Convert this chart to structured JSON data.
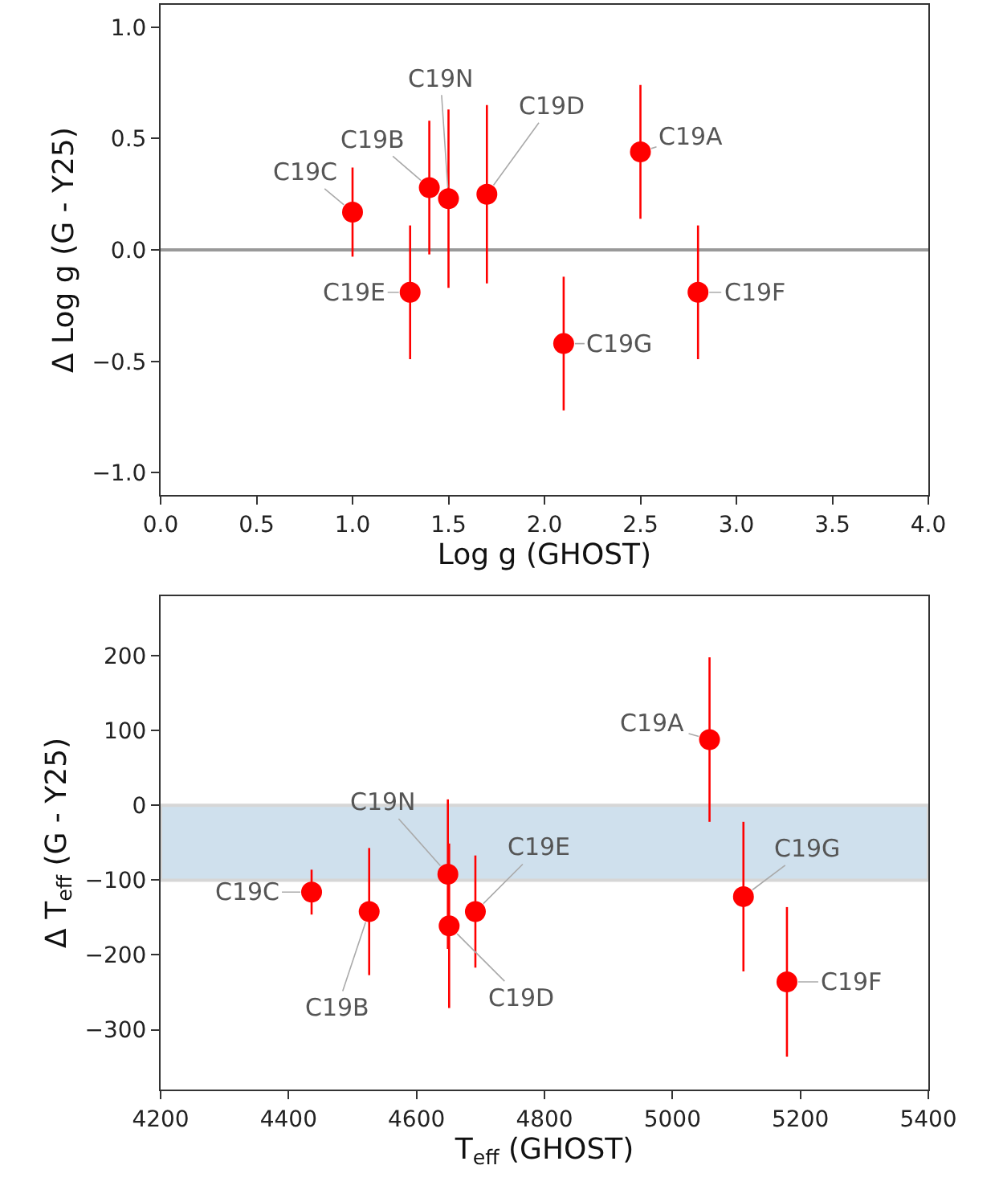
{
  "chart_data": [
    {
      "type": "scatter",
      "xlabel": "Log g (GHOST)",
      "ylabel": "Δ Log g (G - Y25)",
      "marker": "circle",
      "grid": false,
      "xlim": [
        0,
        4
      ],
      "xticks": [
        {
          "value": 0,
          "label": "0.0"
        },
        {
          "value": 0.5,
          "label": "0.5"
        },
        {
          "value": 1,
          "label": "1.0"
        },
        {
          "value": 1.5,
          "label": "1.5"
        },
        {
          "value": 2,
          "label": "2.0"
        },
        {
          "value": 2.5,
          "label": "2.5"
        },
        {
          "value": 3,
          "label": "3.0"
        },
        {
          "value": 3.5,
          "label": "3.5"
        },
        {
          "value": 4,
          "label": "4.0"
        }
      ],
      "ylim": [
        -1.1,
        1.1
      ],
      "yticks": [
        {
          "value": -1,
          "label": "−1.0"
        },
        {
          "value": -0.5,
          "label": "−0.5"
        },
        {
          "value": 0,
          "label": "0.0"
        },
        {
          "value": 0.5,
          "label": "0.5"
        },
        {
          "value": 1,
          "label": "1.0"
        }
      ],
      "series": [
        {
          "color": "#ff0000",
          "x": [
            2.5,
            1.4,
            1.0,
            1.7,
            1.3,
            2.8,
            2.1,
            1.5
          ],
          "values": [
            0.44,
            0.28,
            0.17,
            0.25,
            -0.19,
            -0.19,
            -0.42,
            0.23
          ],
          "errors": [
            0.3,
            0.3,
            0.2,
            0.4,
            0.3,
            0.3,
            0.3,
            0.4
          ]
        }
      ],
      "ref_lines": [
        {
          "axis": "y",
          "value": 0,
          "color": "#999999"
        }
      ],
      "annotations": [
        {
          "text": "C19A",
          "x": 2.5,
          "y": 0.44
        },
        {
          "text": "C19B",
          "x": 1.4,
          "y": 0.28
        },
        {
          "text": "C19C",
          "x": 1.0,
          "y": 0.17
        },
        {
          "text": "C19D",
          "x": 1.7,
          "y": 0.25
        },
        {
          "text": "C19E",
          "x": 1.3,
          "y": -0.19
        },
        {
          "text": "C19F",
          "x": 2.8,
          "y": -0.19
        },
        {
          "text": "C19G",
          "x": 2.1,
          "y": -0.42
        },
        {
          "text": "C19N",
          "x": 1.5,
          "y": 0.23
        }
      ]
    },
    {
      "type": "scatter",
      "xlabel": "T$_{eff}$ (GHOST)",
      "ylabel": "Δ T$_{eff}$ (G - Y25)",
      "marker": "circle",
      "grid": false,
      "xlim": [
        4200,
        5400
      ],
      "xticks": [
        4200,
        4400,
        4600,
        4800,
        5000,
        5200,
        5400
      ],
      "ylim": [
        -380,
        280
      ],
      "yticks": [
        {
          "value": -300,
          "label": "−300"
        },
        {
          "value": -200,
          "label": "−200"
        },
        {
          "value": -100,
          "label": "−100"
        },
        0,
        100,
        200
      ],
      "series": [
        {
          "color": "#ff0000",
          "x": [
            5058,
            4526,
            4436,
            4651,
            4692,
            5179,
            5111,
            4649
          ],
          "values": [
            88,
            -142,
            -116,
            -161,
            -142,
            -236,
            -122,
            -92
          ],
          "errors": [
            110,
            85,
            30,
            110,
            75,
            100,
            100,
            100
          ]
        }
      ],
      "bands": [
        {
          "axis": "y",
          "from": -100,
          "to": 0,
          "color": "#cfe0ed"
        }
      ],
      "annotations": [
        {
          "text": "C19A",
          "x": 5058,
          "y": 88
        },
        {
          "text": "C19B",
          "x": 4526,
          "y": -142
        },
        {
          "text": "C19C",
          "x": 4436,
          "y": -116
        },
        {
          "text": "C19D",
          "x": 4651,
          "y": -161
        },
        {
          "text": "C19E",
          "x": 4692,
          "y": -142
        },
        {
          "text": "C19F",
          "x": 5179,
          "y": -236
        },
        {
          "text": "C19G",
          "x": 5111,
          "y": -122
        },
        {
          "text": "C19N",
          "x": 4649,
          "y": -92
        }
      ]
    }
  ]
}
